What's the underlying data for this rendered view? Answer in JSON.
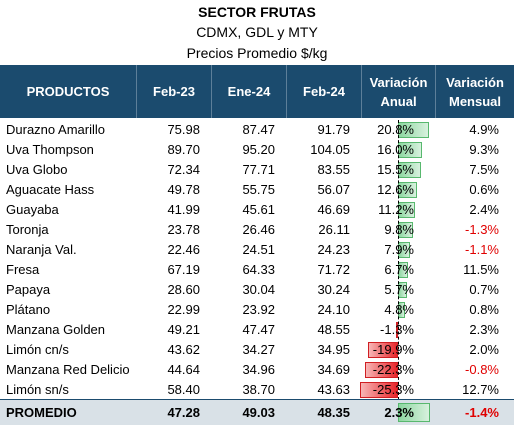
{
  "title": "SECTOR FRUTAS",
  "subtitle": "CDMX, GDL y MTY",
  "units": "Precios Promedio $/kg",
  "headers": {
    "productos": "PRODUCTOS",
    "feb23": "Feb-23",
    "ene24": "Ene-24",
    "feb24": "Feb-24",
    "var_anual_1": "Variación",
    "var_anual_2": "Anual",
    "var_mensual_1": "Variación",
    "var_mensual_2": "Mensual"
  },
  "colors": {
    "header": "#1b4b6e",
    "positive_bar": "#8dd7a0",
    "negative_bar": "#e8262a",
    "negative_text": "#e00000",
    "promedio_bg": "#d9e1e7"
  },
  "rows": [
    {
      "producto": "Durazno Amarillo",
      "feb23": "75.98",
      "ene24": "87.47",
      "feb24": "91.79",
      "var_anual": "20.8%",
      "var_anual_value": 20.8,
      "var_mensual": "4.9%",
      "mensual_negative": false
    },
    {
      "producto": "Uva Thompson",
      "feb23": "89.70",
      "ene24": "95.20",
      "feb24": "104.05",
      "var_anual": "16.0%",
      "var_anual_value": 16.0,
      "var_mensual": "9.3%",
      "mensual_negative": false
    },
    {
      "producto": "Uva Globo",
      "feb23": "72.34",
      "ene24": "77.71",
      "feb24": "83.55",
      "var_anual": "15.5%",
      "var_anual_value": 15.5,
      "var_mensual": "7.5%",
      "mensual_negative": false
    },
    {
      "producto": "Aguacate Hass",
      "feb23": "49.78",
      "ene24": "55.75",
      "feb24": "56.07",
      "var_anual": "12.6%",
      "var_anual_value": 12.6,
      "var_mensual": "0.6%",
      "mensual_negative": false
    },
    {
      "producto": "Guayaba",
      "feb23": "41.99",
      "ene24": "45.61",
      "feb24": "46.69",
      "var_anual": "11.2%",
      "var_anual_value": 11.2,
      "var_mensual": "2.4%",
      "mensual_negative": false
    },
    {
      "producto": "Toronja",
      "feb23": "23.78",
      "ene24": "26.46",
      "feb24": "26.11",
      "var_anual": "9.8%",
      "var_anual_value": 9.8,
      "var_mensual": "-1.3%",
      "mensual_negative": true
    },
    {
      "producto": "Naranja Val.",
      "feb23": "22.46",
      "ene24": "24.51",
      "feb24": "24.23",
      "var_anual": "7.9%",
      "var_anual_value": 7.9,
      "var_mensual": "-1.1%",
      "mensual_negative": true
    },
    {
      "producto": "Fresa",
      "feb23": "67.19",
      "ene24": "64.33",
      "feb24": "71.72",
      "var_anual": "6.7%",
      "var_anual_value": 6.7,
      "var_mensual": "11.5%",
      "mensual_negative": false
    },
    {
      "producto": "Papaya",
      "feb23": "28.60",
      "ene24": "30.04",
      "feb24": "30.24",
      "var_anual": "5.7%",
      "var_anual_value": 5.7,
      "var_mensual": "0.7%",
      "mensual_negative": false
    },
    {
      "producto": "Plátano",
      "feb23": "22.99",
      "ene24": "23.92",
      "feb24": "24.10",
      "var_anual": "4.8%",
      "var_anual_value": 4.8,
      "var_mensual": "0.8%",
      "mensual_negative": false
    },
    {
      "producto": "Manzana Golden",
      "feb23": "49.21",
      "ene24": "47.47",
      "feb24": "48.55",
      "var_anual": "-1.3%",
      "var_anual_value": -1.3,
      "var_mensual": "2.3%",
      "mensual_negative": false
    },
    {
      "producto": "Limón cn/s",
      "feb23": "43.62",
      "ene24": "34.27",
      "feb24": "34.95",
      "var_anual": "-19.9%",
      "var_anual_value": -19.9,
      "var_mensual": "2.0%",
      "mensual_negative": false
    },
    {
      "producto": "Manzana Red Delicio",
      "feb23": "44.64",
      "ene24": "34.96",
      "feb24": "34.69",
      "var_anual": "-22.3%",
      "var_anual_value": -22.3,
      "var_mensual": "-0.8%",
      "mensual_negative": true
    },
    {
      "producto": "Limón sn/s",
      "feb23": "58.40",
      "ene24": "38.70",
      "feb24": "43.63",
      "var_anual": "-25.3%",
      "var_anual_value": -25.3,
      "var_mensual": "12.7%",
      "mensual_negative": false
    }
  ],
  "promedio": {
    "label": "PROMEDIO",
    "feb23": "47.28",
    "ene24": "49.03",
    "feb24": "48.35",
    "var_anual": "2.3%",
    "var_anual_value": 2.3,
    "var_mensual": "-1.4%",
    "mensual_negative": true
  }
}
